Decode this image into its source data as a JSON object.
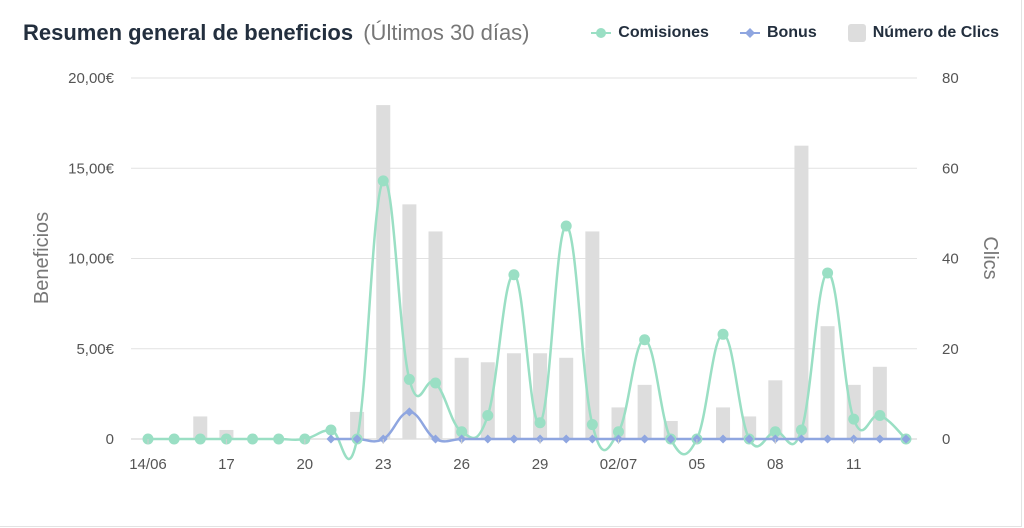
{
  "header": {
    "title": "Resumen general de beneficios",
    "subtitle": "(Últimos 30 días)"
  },
  "legend": {
    "items": [
      {
        "key": "comisiones",
        "label": "Comisiones",
        "color": "#9adfc4",
        "marker": "circle-line"
      },
      {
        "key": "bonus",
        "label": "Bonus",
        "color": "#8fa6e0",
        "marker": "diamond-line"
      },
      {
        "key": "clics",
        "label": "Número de Clics",
        "color": "#dddddd",
        "marker": "square"
      }
    ]
  },
  "chart_data": {
    "type": "bar",
    "categories": [
      "14/06",
      "15",
      "16",
      "17",
      "18",
      "19",
      "20",
      "21",
      "22",
      "23",
      "24",
      "25",
      "26",
      "27",
      "28",
      "29",
      "30",
      "01",
      "02/07",
      "03",
      "04",
      "05",
      "06",
      "07",
      "08",
      "09",
      "10",
      "11",
      "12",
      "13"
    ],
    "x_tick_labels": [
      "14/06",
      "",
      "",
      "17",
      "",
      "",
      "20",
      "",
      "",
      "23",
      "",
      "",
      "26",
      "",
      "",
      "29",
      "",
      "",
      "02/07",
      "",
      "",
      "05",
      "",
      "",
      "08",
      "",
      "",
      "11",
      "",
      ""
    ],
    "series": [
      {
        "name": "Número de Clics",
        "type": "bar",
        "axis": "right",
        "color": "#dddddd",
        "values": [
          0,
          0,
          5,
          2,
          0,
          0,
          0,
          0,
          6,
          74,
          52,
          46,
          18,
          17,
          19,
          19,
          18,
          46,
          7,
          12,
          4,
          0,
          7,
          5,
          13,
          65,
          25,
          12,
          16,
          0
        ]
      },
      {
        "name": "Comisiones",
        "type": "line",
        "axis": "left",
        "color": "#9adfc4",
        "values": [
          0,
          0,
          0,
          0,
          0,
          0,
          0,
          0.5,
          0,
          14.3,
          3.3,
          3.1,
          0.4,
          1.3,
          9.1,
          0.9,
          11.8,
          0.8,
          0.4,
          5.5,
          0,
          0,
          5.8,
          0,
          0.4,
          0.5,
          9.2,
          1.1,
          1.3,
          0
        ]
      },
      {
        "name": "Bonus",
        "type": "line",
        "axis": "left",
        "color": "#8fa6e0",
        "values": [
          null,
          null,
          null,
          null,
          null,
          null,
          null,
          0,
          0,
          0,
          1.5,
          0,
          0,
          0,
          0,
          0,
          0,
          0,
          0,
          0,
          0,
          0,
          0,
          0,
          0,
          0,
          0,
          0,
          0,
          0
        ]
      }
    ],
    "y_left": {
      "label": "Beneficios",
      "ylim": [
        0,
        20
      ],
      "ticks": [
        0,
        5,
        10,
        15,
        20
      ],
      "tick_labels": [
        "0",
        "5,00€",
        "10,00€",
        "15,00€",
        "20,00€"
      ]
    },
    "y_right": {
      "label": "Clics",
      "ylim": [
        0,
        80
      ],
      "ticks": [
        0,
        20,
        40,
        60,
        80
      ],
      "tick_labels": [
        "0",
        "20",
        "40",
        "60",
        "80"
      ]
    },
    "grid": true,
    "legend_position": "top-right"
  }
}
